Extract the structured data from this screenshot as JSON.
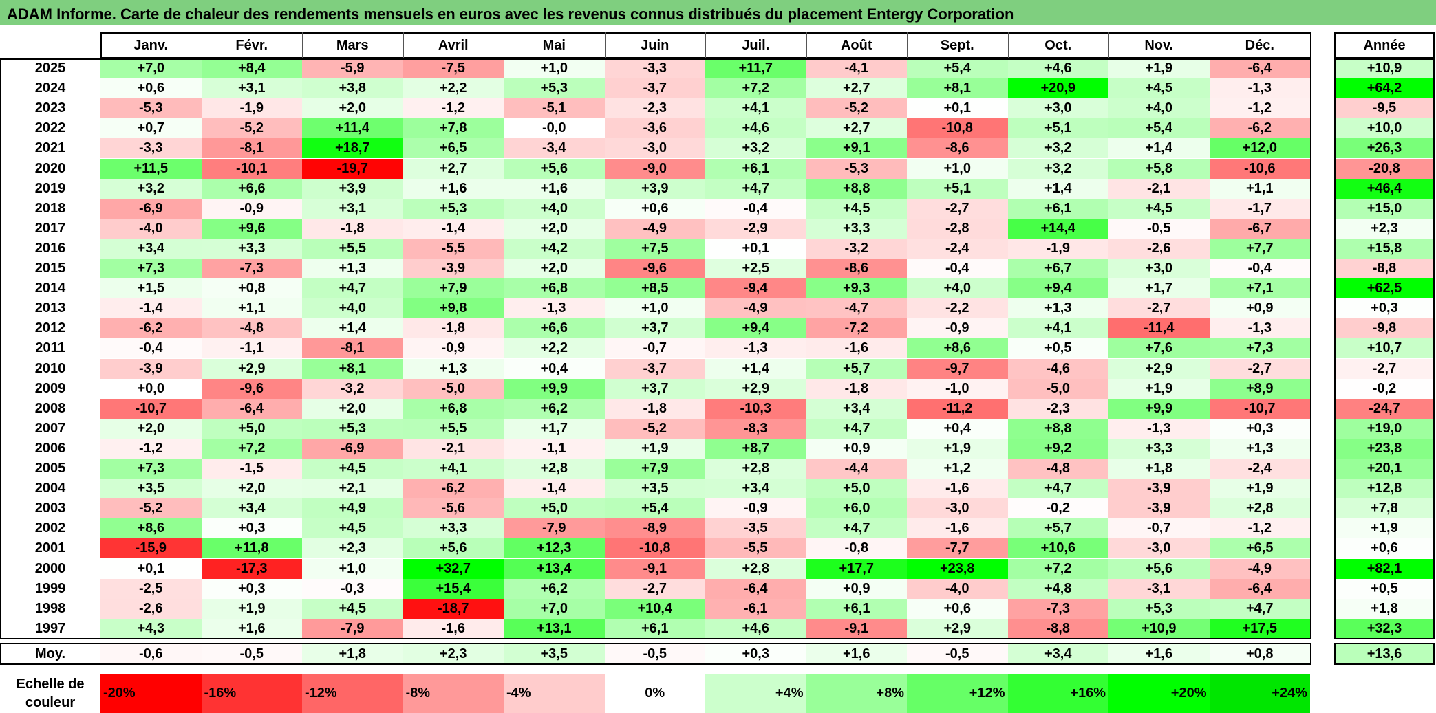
{
  "title": "ADAM Informe. Carte de chaleur des rendements mensuels en euros avec les revenus connus distribués du placement Entergy Corporation",
  "chart_data": {
    "type": "heatmap",
    "columns": [
      "Janv.",
      "Févr.",
      "Mars",
      "Avril",
      "Mai",
      "Juin",
      "Juil.",
      "Août",
      "Sept.",
      "Oct.",
      "Nov.",
      "Déc."
    ],
    "annual_header": "Année",
    "rows": [
      {
        "year": "2025",
        "values": [
          "+7,0",
          "+8,4",
          "-5,9",
          "-7,5",
          "+1,0",
          "-3,3",
          "+11,7",
          "-4,1",
          "+5,4",
          "+4,6",
          "+1,9",
          "-6,4"
        ],
        "annual": "+10,9"
      },
      {
        "year": "2024",
        "values": [
          "+0,6",
          "+3,1",
          "+3,8",
          "+2,2",
          "+5,3",
          "-3,7",
          "+7,2",
          "+2,7",
          "+8,1",
          "+20,9",
          "+4,5",
          "-1,3"
        ],
        "annual": "+64,2"
      },
      {
        "year": "2023",
        "values": [
          "-5,3",
          "-1,9",
          "+2,0",
          "-1,2",
          "-5,1",
          "-2,3",
          "+4,1",
          "-5,2",
          "+0,1",
          "+3,0",
          "+4,0",
          "-1,2"
        ],
        "annual": "-9,5"
      },
      {
        "year": "2022",
        "values": [
          "+0,7",
          "-5,2",
          "+11,4",
          "+7,8",
          "-0,0",
          "-3,6",
          "+4,6",
          "+2,7",
          "-10,8",
          "+5,1",
          "+5,4",
          "-6,2"
        ],
        "annual": "+10,0"
      },
      {
        "year": "2021",
        "values": [
          "-3,3",
          "-8,1",
          "+18,7",
          "+6,5",
          "-3,4",
          "-3,0",
          "+3,2",
          "+9,1",
          "-8,6",
          "+3,2",
          "+1,4",
          "+12,0"
        ],
        "annual": "+26,3"
      },
      {
        "year": "2020",
        "values": [
          "+11,5",
          "-10,1",
          "-19,7",
          "+2,7",
          "+5,6",
          "-9,0",
          "+6,1",
          "-5,3",
          "+1,0",
          "+3,2",
          "+5,8",
          "-10,6"
        ],
        "annual": "-20,8"
      },
      {
        "year": "2019",
        "values": [
          "+3,2",
          "+6,6",
          "+3,9",
          "+1,6",
          "+1,6",
          "+3,9",
          "+4,7",
          "+8,8",
          "+5,1",
          "+1,4",
          "-2,1",
          "+1,1"
        ],
        "annual": "+46,4"
      },
      {
        "year": "2018",
        "values": [
          "-6,9",
          "-0,9",
          "+3,1",
          "+5,3",
          "+4,0",
          "+0,6",
          "-0,4",
          "+4,5",
          "-2,7",
          "+6,1",
          "+4,5",
          "-1,7"
        ],
        "annual": "+15,0"
      },
      {
        "year": "2017",
        "values": [
          "-4,0",
          "+9,6",
          "-1,8",
          "-1,4",
          "+2,0",
          "-4,9",
          "-2,9",
          "+3,3",
          "-2,8",
          "+14,4",
          "-0,5",
          "-6,7"
        ],
        "annual": "+2,3"
      },
      {
        "year": "2016",
        "values": [
          "+3,4",
          "+3,3",
          "+5,5",
          "-5,5",
          "+4,2",
          "+7,5",
          "+0,1",
          "-3,2",
          "-2,4",
          "-1,9",
          "-2,6",
          "+7,7"
        ],
        "annual": "+15,8"
      },
      {
        "year": "2015",
        "values": [
          "+7,3",
          "-7,3",
          "+1,3",
          "-3,9",
          "+2,0",
          "-9,6",
          "+2,5",
          "-8,6",
          "-0,4",
          "+6,7",
          "+3,0",
          "-0,4"
        ],
        "annual": "-8,8"
      },
      {
        "year": "2014",
        "values": [
          "+1,5",
          "+0,8",
          "+4,7",
          "+7,9",
          "+6,8",
          "+8,5",
          "-9,4",
          "+9,3",
          "+4,0",
          "+9,4",
          "+1,7",
          "+7,1"
        ],
        "annual": "+62,5"
      },
      {
        "year": "2013",
        "values": [
          "-1,4",
          "+1,1",
          "+4,0",
          "+9,8",
          "-1,3",
          "+1,0",
          "-4,9",
          "-4,7",
          "-2,2",
          "+1,3",
          "-2,7",
          "+0,9"
        ],
        "annual": "+0,3"
      },
      {
        "year": "2012",
        "values": [
          "-6,2",
          "-4,8",
          "+1,4",
          "-1,8",
          "+6,6",
          "+3,7",
          "+9,4",
          "-7,2",
          "-0,9",
          "+4,1",
          "-11,4",
          "-1,3"
        ],
        "annual": "-9,8"
      },
      {
        "year": "2011",
        "values": [
          "-0,4",
          "-1,1",
          "-8,1",
          "-0,9",
          "+2,2",
          "-0,7",
          "-1,3",
          "-1,6",
          "+8,6",
          "+0,5",
          "+7,6",
          "+7,3"
        ],
        "annual": "+10,7"
      },
      {
        "year": "2010",
        "values": [
          "-3,9",
          "+2,9",
          "+8,1",
          "+1,3",
          "+0,4",
          "-3,7",
          "+1,4",
          "+5,7",
          "-9,7",
          "-4,6",
          "+2,9",
          "-2,7"
        ],
        "annual": "-2,7"
      },
      {
        "year": "2009",
        "values": [
          "+0,0",
          "-9,6",
          "-3,2",
          "-5,0",
          "+9,9",
          "+3,7",
          "+2,9",
          "-1,8",
          "-1,0",
          "-5,0",
          "+1,9",
          "+8,9"
        ],
        "annual": "-0,2"
      },
      {
        "year": "2008",
        "values": [
          "-10,7",
          "-6,4",
          "+2,0",
          "+6,8",
          "+6,2",
          "-1,8",
          "-10,3",
          "+3,4",
          "-11,2",
          "-2,3",
          "+9,9",
          "-10,7"
        ],
        "annual": "-24,7"
      },
      {
        "year": "2007",
        "values": [
          "+2,0",
          "+5,0",
          "+5,3",
          "+5,5",
          "+1,7",
          "-5,2",
          "-8,3",
          "+4,7",
          "+0,4",
          "+8,8",
          "-1,3",
          "+0,3"
        ],
        "annual": "+19,0"
      },
      {
        "year": "2006",
        "values": [
          "-1,2",
          "+7,2",
          "-6,9",
          "-2,1",
          "-1,1",
          "+1,9",
          "+8,7",
          "+0,9",
          "+1,9",
          "+9,2",
          "+3,3",
          "+1,3"
        ],
        "annual": "+23,8"
      },
      {
        "year": "2005",
        "values": [
          "+7,3",
          "-1,5",
          "+4,5",
          "+4,1",
          "+2,8",
          "+7,9",
          "+2,8",
          "-4,4",
          "+1,2",
          "-4,8",
          "+1,8",
          "-2,4"
        ],
        "annual": "+20,1"
      },
      {
        "year": "2004",
        "values": [
          "+3,5",
          "+2,0",
          "+2,1",
          "-6,2",
          "-1,4",
          "+3,5",
          "+3,4",
          "+5,0",
          "-1,6",
          "+4,7",
          "-3,9",
          "+1,9"
        ],
        "annual": "+12,8"
      },
      {
        "year": "2003",
        "values": [
          "-5,2",
          "+3,4",
          "+4,9",
          "-5,6",
          "+5,0",
          "+5,4",
          "-0,9",
          "+6,0",
          "-3,0",
          "-0,2",
          "-3,9",
          "+2,8"
        ],
        "annual": "+7,8"
      },
      {
        "year": "2002",
        "values": [
          "+8,6",
          "+0,3",
          "+4,5",
          "+3,3",
          "-7,9",
          "-8,9",
          "-3,5",
          "+4,7",
          "-1,6",
          "+5,7",
          "-0,7",
          "-1,2"
        ],
        "annual": "+1,9"
      },
      {
        "year": "2001",
        "values": [
          "-15,9",
          "+11,8",
          "+2,3",
          "+5,6",
          "+12,3",
          "-10,8",
          "-5,5",
          "-0,8",
          "-7,7",
          "+10,6",
          "-3,0",
          "+6,5"
        ],
        "annual": "+0,6"
      },
      {
        "year": "2000",
        "values": [
          "+0,1",
          "-17,3",
          "+1,0",
          "+32,7",
          "+13,4",
          "-9,1",
          "+2,8",
          "+17,7",
          "+23,8",
          "+7,2",
          "+5,6",
          "-4,9"
        ],
        "annual": "+82,1"
      },
      {
        "year": "1999",
        "values": [
          "-2,5",
          "+0,3",
          "-0,3",
          "+15,4",
          "+6,2",
          "-2,7",
          "-6,4",
          "+0,9",
          "-4,0",
          "+4,8",
          "-3,1",
          "-6,4"
        ],
        "annual": "+0,5"
      },
      {
        "year": "1998",
        "values": [
          "-2,6",
          "+1,9",
          "+4,5",
          "-18,7",
          "+7,0",
          "+10,4",
          "-6,1",
          "+6,1",
          "+0,6",
          "-7,3",
          "+5,3",
          "+4,7"
        ],
        "annual": "+1,8"
      },
      {
        "year": "1997",
        "values": [
          "+4,3",
          "+1,6",
          "-7,9",
          "-1,6",
          "+13,1",
          "+6,1",
          "+4,6",
          "-9,1",
          "+2,9",
          "-8,8",
          "+10,9",
          "+17,5"
        ],
        "annual": "+32,3"
      }
    ],
    "average": {
      "label": "Moy.",
      "values": [
        "-0,6",
        "-0,5",
        "+1,8",
        "+2,3",
        "+3,5",
        "-0,5",
        "+0,3",
        "+1,6",
        "-0,5",
        "+3,4",
        "+1,6",
        "+0,8"
      ],
      "annual": "+13,6"
    },
    "color_scale": {
      "label_line1": "Echelle de",
      "label_line2": "couleur",
      "steps": [
        {
          "label": "-20%",
          "value": -20,
          "color": "#ff0000"
        },
        {
          "label": "-16%",
          "value": -16,
          "color": "#ff3333"
        },
        {
          "label": "-12%",
          "value": -12,
          "color": "#ff6666"
        },
        {
          "label": "-8%",
          "value": -8,
          "color": "#ff9999"
        },
        {
          "label": "-4%",
          "value": -4,
          "color": "#ffcccc"
        },
        {
          "label": "0%",
          "value": 0,
          "color": "#ffffff"
        },
        {
          "label": "+4%",
          "value": 4,
          "color": "#ccffcc"
        },
        {
          "label": "+8%",
          "value": 8,
          "color": "#99ff99"
        },
        {
          "label": "+12%",
          "value": 12,
          "color": "#66ff66"
        },
        {
          "label": "+16%",
          "value": 16,
          "color": "#33ff33"
        },
        {
          "label": "+20%",
          "value": 20,
          "color": "#00ff00"
        },
        {
          "label": "+24%",
          "value": 24,
          "color": "#00e600"
        }
      ]
    },
    "colors": {
      "title_bg": "#7fcf7f",
      "negative_max": "#ff0000",
      "positive_max": "#00e600",
      "neutral": "#ffffff"
    }
  }
}
